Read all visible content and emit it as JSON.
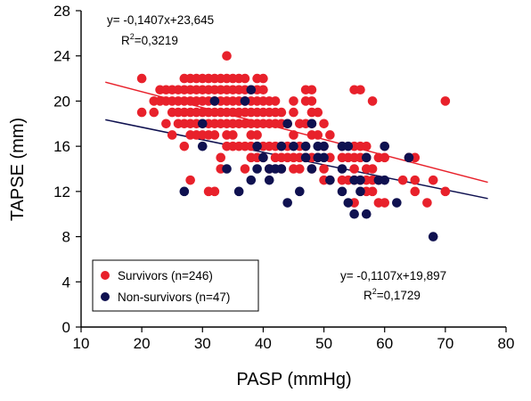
{
  "chart_data": {
    "type": "scatter",
    "title": "",
    "xlabel": "PASP (mmHg)",
    "ylabel": "TAPSE (mm)",
    "xlim": [
      10,
      80
    ],
    "ylim": [
      0,
      28
    ],
    "xticks": [
      10,
      20,
      30,
      40,
      50,
      60,
      70,
      80
    ],
    "yticks": [
      0,
      4,
      8,
      12,
      16,
      20,
      24,
      28
    ],
    "grid": false,
    "legend_position": "bottom-left",
    "series": [
      {
        "name": "Survivors (n=246)",
        "color": "#e8212b",
        "regression": {
          "slope": -0.1407,
          "intercept": 23.645,
          "equation": "y= -0,1407x+23,645",
          "r2_prefix": "R",
          "r2_value": "=0,3219",
          "x_range": [
            14,
            77
          ]
        },
        "points": [
          [
            20,
            22
          ],
          [
            20,
            19
          ],
          [
            22,
            20
          ],
          [
            22,
            19
          ],
          [
            23,
            21
          ],
          [
            23,
            20
          ],
          [
            24,
            21
          ],
          [
            24,
            20
          ],
          [
            24,
            18
          ],
          [
            25,
            21
          ],
          [
            25,
            20
          ],
          [
            25,
            19
          ],
          [
            25,
            17
          ],
          [
            26,
            21
          ],
          [
            26,
            20
          ],
          [
            26,
            19
          ],
          [
            26,
            18
          ],
          [
            27,
            22
          ],
          [
            27,
            21
          ],
          [
            27,
            20
          ],
          [
            27,
            19
          ],
          [
            27,
            18
          ],
          [
            27,
            16
          ],
          [
            28,
            22
          ],
          [
            28,
            21
          ],
          [
            28,
            20
          ],
          [
            28,
            19
          ],
          [
            28,
            18
          ],
          [
            28,
            17
          ],
          [
            28,
            13
          ],
          [
            29,
            22
          ],
          [
            29,
            21
          ],
          [
            29,
            20
          ],
          [
            29,
            19
          ],
          [
            29,
            18
          ],
          [
            29,
            17
          ],
          [
            30,
            22
          ],
          [
            30,
            21
          ],
          [
            30,
            20
          ],
          [
            30,
            19
          ],
          [
            30,
            18
          ],
          [
            30,
            17
          ],
          [
            31,
            22
          ],
          [
            31,
            21
          ],
          [
            31,
            20
          ],
          [
            31,
            19
          ],
          [
            31,
            18
          ],
          [
            31,
            17
          ],
          [
            31,
            12
          ],
          [
            32,
            22
          ],
          [
            32,
            21
          ],
          [
            32,
            20
          ],
          [
            32,
            19
          ],
          [
            32,
            18
          ],
          [
            32,
            17
          ],
          [
            32,
            12
          ],
          [
            33,
            22
          ],
          [
            33,
            21
          ],
          [
            33,
            20
          ],
          [
            33,
            19
          ],
          [
            33,
            18
          ],
          [
            33,
            15
          ],
          [
            33,
            14
          ],
          [
            34,
            24
          ],
          [
            34,
            22
          ],
          [
            34,
            21
          ],
          [
            34,
            20
          ],
          [
            34,
            19
          ],
          [
            34,
            18
          ],
          [
            34,
            17
          ],
          [
            34,
            16
          ],
          [
            35,
            22
          ],
          [
            35,
            21
          ],
          [
            35,
            20
          ],
          [
            35,
            19
          ],
          [
            35,
            18
          ],
          [
            35,
            17
          ],
          [
            35,
            16
          ],
          [
            36,
            22
          ],
          [
            36,
            21
          ],
          [
            36,
            20
          ],
          [
            36,
            19
          ],
          [
            36,
            18
          ],
          [
            36,
            16
          ],
          [
            37,
            22
          ],
          [
            37,
            21
          ],
          [
            37,
            20
          ],
          [
            37,
            19
          ],
          [
            37,
            18
          ],
          [
            37,
            16
          ],
          [
            37,
            14
          ],
          [
            38,
            21
          ],
          [
            38,
            20
          ],
          [
            38,
            19
          ],
          [
            38,
            18
          ],
          [
            38,
            17
          ],
          [
            38,
            16
          ],
          [
            38,
            15
          ],
          [
            39,
            22
          ],
          [
            39,
            21
          ],
          [
            39,
            20
          ],
          [
            39,
            19
          ],
          [
            39,
            18
          ],
          [
            39,
            17
          ],
          [
            39,
            16
          ],
          [
            39,
            15
          ],
          [
            40,
            22
          ],
          [
            40,
            21
          ],
          [
            40,
            20
          ],
          [
            40,
            19
          ],
          [
            40,
            18
          ],
          [
            40,
            16
          ],
          [
            40,
            15
          ],
          [
            41,
            20
          ],
          [
            41,
            19
          ],
          [
            41,
            18
          ],
          [
            41,
            16
          ],
          [
            41,
            14
          ],
          [
            42,
            20
          ],
          [
            42,
            19
          ],
          [
            42,
            18
          ],
          [
            42,
            16
          ],
          [
            42,
            15
          ],
          [
            43,
            19
          ],
          [
            43,
            18
          ],
          [
            43,
            16
          ],
          [
            43,
            15
          ],
          [
            43,
            14
          ],
          [
            44,
            18
          ],
          [
            44,
            16
          ],
          [
            44,
            15
          ],
          [
            45,
            20
          ],
          [
            45,
            19
          ],
          [
            45,
            17
          ],
          [
            45,
            15
          ],
          [
            45,
            14
          ],
          [
            46,
            18
          ],
          [
            46,
            16
          ],
          [
            46,
            15
          ],
          [
            46,
            14
          ],
          [
            47,
            21
          ],
          [
            47,
            20
          ],
          [
            47,
            18
          ],
          [
            47,
            16
          ],
          [
            47,
            15
          ],
          [
            48,
            21
          ],
          [
            48,
            20
          ],
          [
            48,
            19
          ],
          [
            48,
            18
          ],
          [
            48,
            17
          ],
          [
            48,
            15
          ],
          [
            48,
            14
          ],
          [
            49,
            19
          ],
          [
            49,
            17
          ],
          [
            49,
            15
          ],
          [
            50,
            18
          ],
          [
            50,
            16
          ],
          [
            50,
            14
          ],
          [
            50,
            13
          ],
          [
            51,
            17
          ],
          [
            51,
            15
          ],
          [
            51,
            13
          ],
          [
            53,
            16
          ],
          [
            53,
            15
          ],
          [
            53,
            13
          ],
          [
            54,
            15
          ],
          [
            54,
            13
          ],
          [
            55,
            21
          ],
          [
            55,
            16
          ],
          [
            55,
            15
          ],
          [
            55,
            14
          ],
          [
            55,
            13
          ],
          [
            55,
            11
          ],
          [
            56,
            21
          ],
          [
            56,
            16
          ],
          [
            56,
            15
          ],
          [
            56,
            13
          ],
          [
            57,
            16
          ],
          [
            57,
            15
          ],
          [
            57,
            14
          ],
          [
            57,
            13
          ],
          [
            57,
            12
          ],
          [
            58,
            20
          ],
          [
            58,
            14
          ],
          [
            58,
            13
          ],
          [
            58,
            12
          ],
          [
            59,
            15
          ],
          [
            59,
            13
          ],
          [
            59,
            11
          ],
          [
            60,
            16
          ],
          [
            60,
            15
          ],
          [
            60,
            11
          ],
          [
            63,
            13
          ],
          [
            64,
            15
          ],
          [
            65,
            15
          ],
          [
            65,
            13
          ],
          [
            65,
            12
          ],
          [
            67,
            11
          ],
          [
            68,
            13
          ],
          [
            70,
            20
          ],
          [
            70,
            12
          ]
        ]
      },
      {
        "name": "Non-survivors (n=47)",
        "color": "#0f1150",
        "regression": {
          "slope": -0.1107,
          "intercept": 19.897,
          "equation": "y= -0,1107x+19,897",
          "r2_prefix": "R",
          "r2_value": "=0,1729",
          "x_range": [
            14,
            77
          ]
        },
        "points": [
          [
            27,
            12
          ],
          [
            30,
            18
          ],
          [
            30,
            16
          ],
          [
            32,
            20
          ],
          [
            34,
            14
          ],
          [
            36,
            12
          ],
          [
            37,
            20
          ],
          [
            38,
            21
          ],
          [
            38,
            13
          ],
          [
            39,
            16
          ],
          [
            39,
            14
          ],
          [
            40,
            15
          ],
          [
            41,
            13
          ],
          [
            41,
            14
          ],
          [
            42,
            14
          ],
          [
            43,
            16
          ],
          [
            43,
            14
          ],
          [
            44,
            18
          ],
          [
            44,
            11
          ],
          [
            45,
            16
          ],
          [
            46,
            12
          ],
          [
            47,
            16
          ],
          [
            47,
            15
          ],
          [
            48,
            18
          ],
          [
            48,
            14
          ],
          [
            49,
            16
          ],
          [
            49,
            15
          ],
          [
            50,
            16
          ],
          [
            50,
            15
          ],
          [
            51,
            13
          ],
          [
            53,
            16
          ],
          [
            53,
            14
          ],
          [
            53,
            12
          ],
          [
            54,
            16
          ],
          [
            54,
            11
          ],
          [
            55,
            13
          ],
          [
            55,
            10
          ],
          [
            56,
            13
          ],
          [
            56,
            12
          ],
          [
            57,
            15
          ],
          [
            57,
            10
          ],
          [
            59,
            13
          ],
          [
            60,
            16
          ],
          [
            60,
            13
          ],
          [
            62,
            11
          ],
          [
            64,
            15
          ],
          [
            68,
            8
          ]
        ]
      }
    ]
  }
}
